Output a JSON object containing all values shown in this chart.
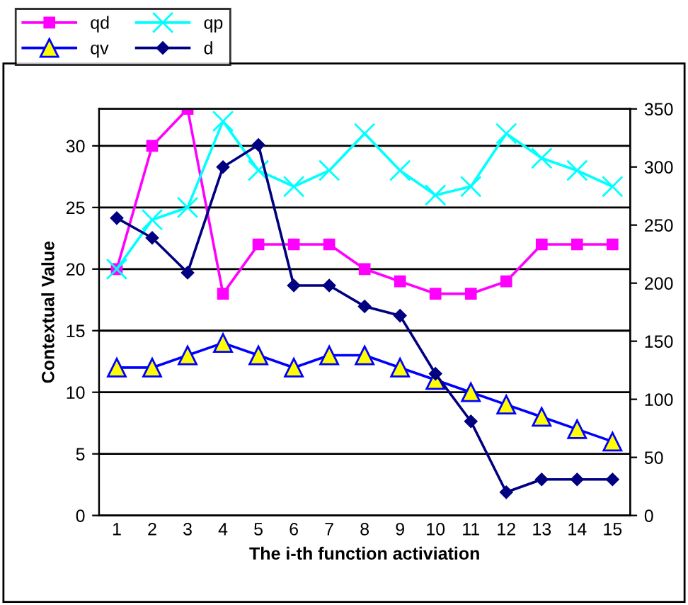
{
  "chart_data": {
    "type": "line",
    "xlabel": "The i-th function activiation",
    "ylabel": "Contextual Value",
    "categories": [
      "1",
      "2",
      "3",
      "4",
      "5",
      "6",
      "7",
      "8",
      "9",
      "10",
      "11",
      "12",
      "13",
      "14",
      "15"
    ],
    "series": [
      {
        "name": "qd",
        "color": "#ff00ff",
        "marker": "square",
        "values": [
          20,
          30,
          33,
          18,
          22,
          22,
          22,
          20,
          19,
          18,
          18,
          19,
          22,
          22,
          22
        ]
      },
      {
        "name": "qv",
        "color": "#0000ff",
        "marker": "triangle",
        "values": [
          12,
          12,
          13,
          14,
          13,
          12,
          13,
          13,
          12,
          11,
          10,
          9,
          8,
          7,
          6
        ]
      },
      {
        "name": "qp",
        "color": "#00ffff",
        "marker": "cross",
        "values": [
          20,
          24,
          25,
          32,
          28,
          26.7,
          28,
          31,
          28,
          26,
          26.7,
          31,
          29,
          28,
          26.7
        ]
      },
      {
        "name": "d",
        "color": "#000080",
        "marker": "diamond",
        "axis": "y2",
        "values": [
          256,
          239,
          209,
          300,
          319,
          198,
          198,
          180,
          172,
          122,
          81,
          20,
          31,
          31,
          31
        ]
      }
    ],
    "ylim": [
      0,
      33
    ],
    "yticks": [
      0,
      5,
      10,
      15,
      20,
      25,
      30
    ],
    "y2lim": [
      0,
      350
    ],
    "y2ticks": [
      0,
      50,
      100,
      150,
      200,
      250,
      300,
      350
    ],
    "grid": "y",
    "legend": "top left",
    "line_style": "solid"
  }
}
